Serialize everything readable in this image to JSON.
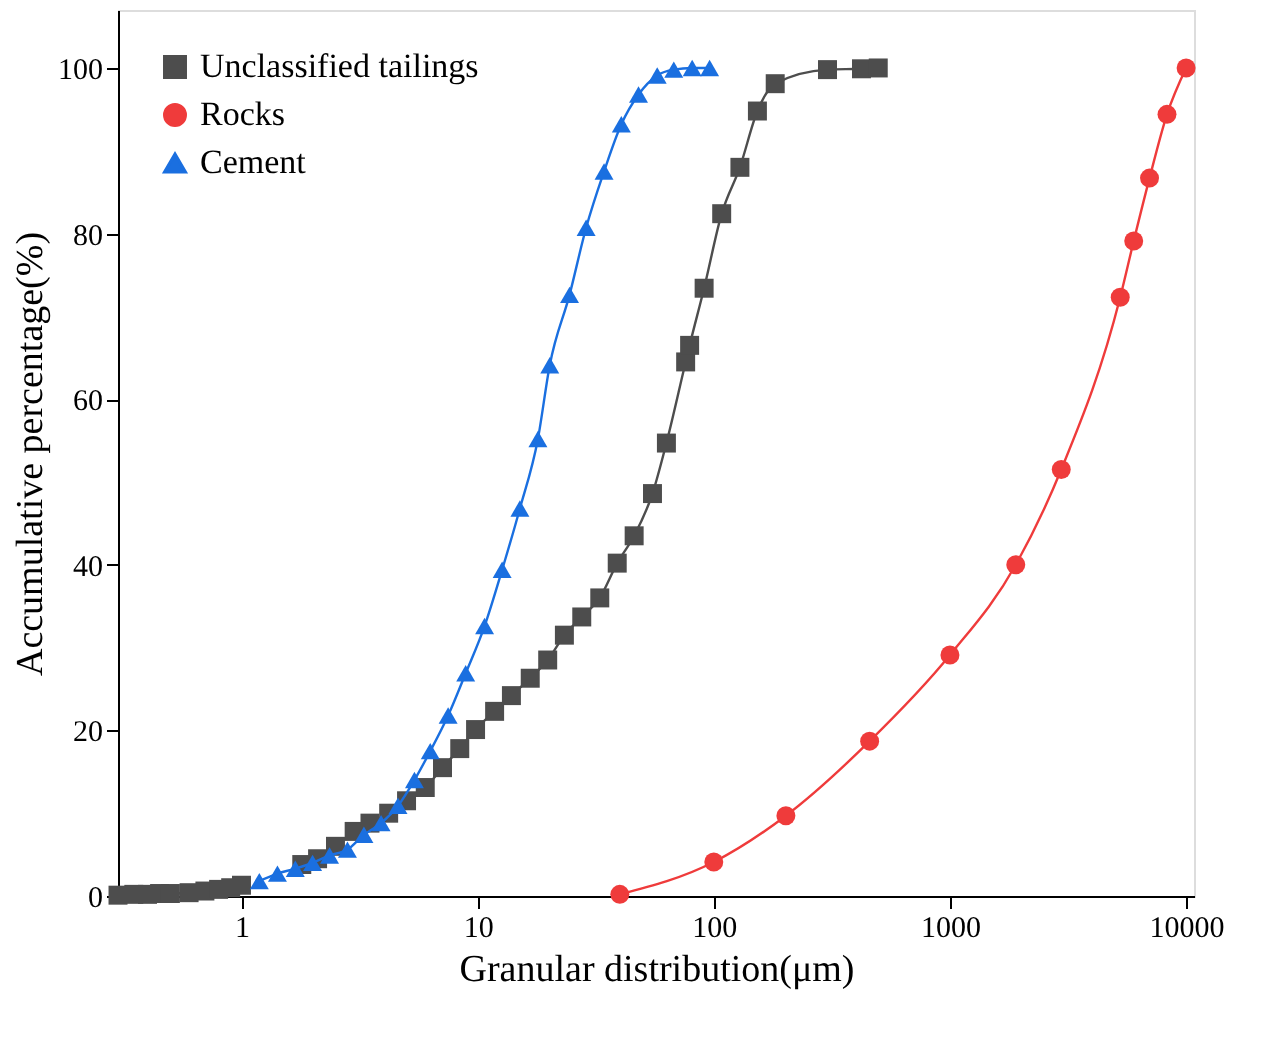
{
  "chart_data": {
    "type": "line",
    "xlabel": "Granular distribution(μm)",
    "ylabel": "Accumulative percentage(%)",
    "log": "x",
    "xlim": [
      0.3,
      10800
    ],
    "xticks": [
      1,
      10,
      100,
      1000,
      10000
    ],
    "ylim": [
      0,
      107
    ],
    "yticks": [
      0,
      20,
      40,
      60,
      80,
      100
    ],
    "grid": false,
    "legend": "top left",
    "series": [
      {
        "name": "Unclassified tailings",
        "color": "#4d4d4d",
        "marker": "square",
        "x": [
          0.3,
          0.35,
          0.4,
          0.45,
          0.5,
          0.6,
          0.7,
          0.8,
          0.9,
          1.0,
          1.2,
          1.4,
          1.6,
          1.8,
          2.1,
          2.5,
          3.0,
          3.5,
          4.2,
          5.0,
          6.0,
          7.1,
          8.4,
          9.8,
          11.8,
          13.9,
          16.7,
          19.8,
          23.3,
          27.6,
          32.9,
          39,
          46,
          55,
          63,
          76,
          79,
          91,
          108,
          129,
          153,
          182,
          303,
          422,
          497
        ],
        "values": [
          0.1,
          0.2,
          0.2,
          0.3,
          0.3,
          0.4,
          0.6,
          0.8,
          1.0,
          1.3,
          null,
          null,
          null,
          3.8,
          4.5,
          6.0,
          7.8,
          8.8,
          10,
          11.5,
          13.1,
          15.5,
          17.8,
          20.1,
          22.3,
          24.2,
          26.3,
          28.5,
          31.5,
          33.7,
          36,
          40.2,
          43.5,
          48.6,
          54.7,
          64.5,
          66.5,
          73.4,
          82.4,
          88,
          94.8,
          98.1,
          99.8,
          99.9,
          100
        ]
      },
      {
        "name": "Rocks",
        "color": "#ef3b3b",
        "marker": "circle",
        "x": [
          40,
          100,
          202,
          457,
          1000,
          1900,
          2960,
          5260,
          6000,
          7000,
          8300,
          10000
        ],
        "values": [
          0.2,
          4.1,
          9.7,
          18.7,
          29.1,
          40,
          51.5,
          72.3,
          79.1,
          86.7,
          94.4,
          100
        ]
      },
      {
        "name": "Cement",
        "color": "#1a6fe0",
        "marker": "triangle",
        "x": [
          1.19,
          1.42,
          1.69,
          2.0,
          2.36,
          2.81,
          3.3,
          3.9,
          4.6,
          5.4,
          6.3,
          7.5,
          8.9,
          10.7,
          12.7,
          15.1,
          18,
          20.2,
          24.5,
          28.8,
          34.3,
          40.6,
          48,
          57.6,
          67.7,
          81,
          96
        ],
        "values": [
          1.8,
          2.7,
          3.3,
          4.0,
          4.9,
          5.6,
          7.4,
          8.8,
          10.9,
          14.0,
          17.5,
          21.8,
          26.9,
          32.6,
          39.4,
          46.8,
          55.2,
          64.1,
          72.6,
          80.7,
          87.5,
          93.2,
          96.8,
          99.1,
          99.8,
          100,
          100
        ]
      }
    ]
  }
}
